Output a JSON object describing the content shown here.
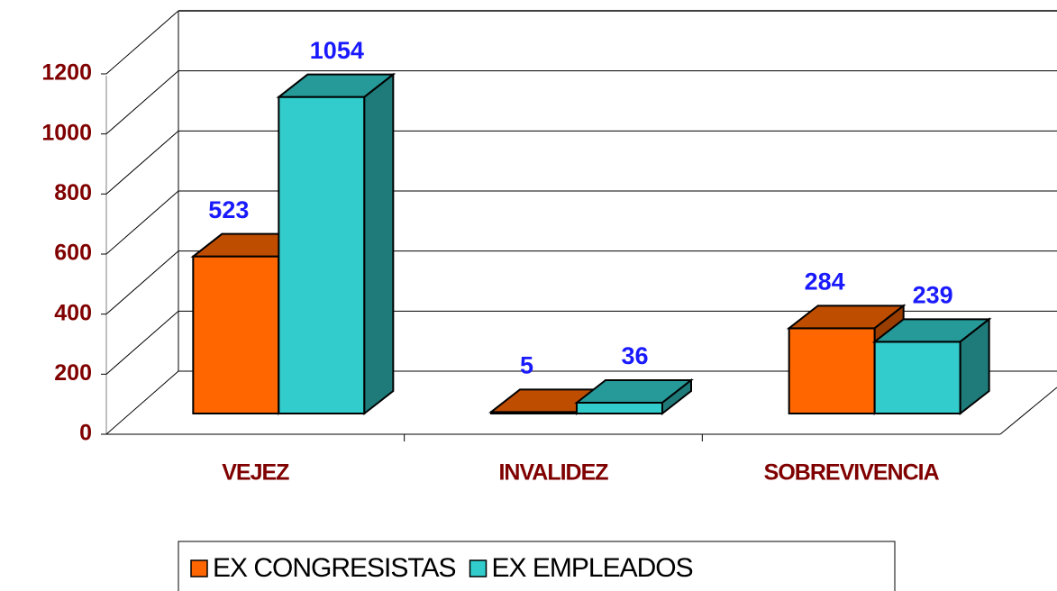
{
  "chart_data": {
    "type": "bar3d",
    "categories": [
      "VEJEZ",
      "INVALIDEZ",
      "SOBREVIVENCIA"
    ],
    "series": [
      {
        "name": "EX CONGRESISTAS",
        "color": "#ff6600",
        "values": [
          523,
          5,
          284
        ]
      },
      {
        "name": "EX EMPLEADOS",
        "color": "#33cccc",
        "values": [
          1054,
          36,
          239
        ]
      }
    ],
    "ylim": [
      0,
      1200
    ],
    "yticks": [
      0,
      200,
      400,
      600,
      800,
      1000,
      1200
    ],
    "grid": true,
    "legend": "bottom"
  }
}
